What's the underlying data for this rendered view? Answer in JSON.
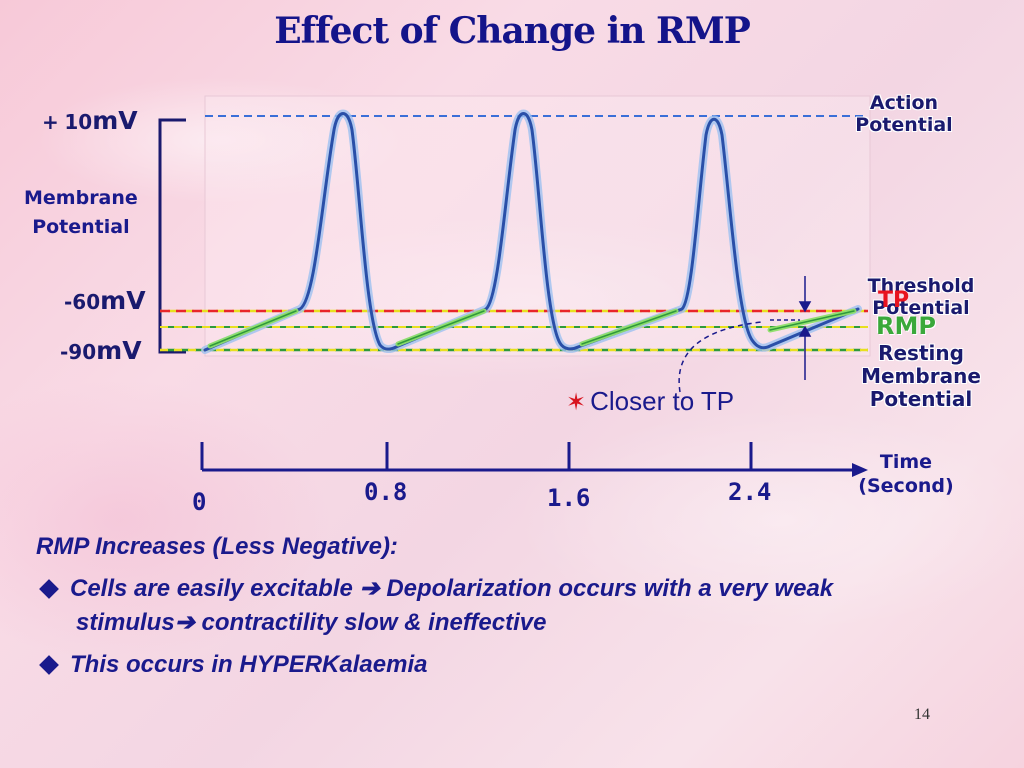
{
  "title": "Effect of Change in RMP",
  "y_labels": {
    "plus10_sign": "+",
    "plus10_num": "10",
    "plus10_unit": "mV",
    "minus60_num": "-60",
    "minus60_unit": "mV",
    "minus90_num": "-90",
    "minus90_unit": "mV"
  },
  "membrane_potential_label": [
    "Membrane",
    "Potential"
  ],
  "right_labels": {
    "action_potential": [
      "Action",
      "Potential"
    ],
    "threshold_potential": [
      "Threshold",
      "Potential"
    ],
    "tp": "TP",
    "rmp": "RMP",
    "resting_membrane_potential": [
      "Resting",
      "Membrane",
      "Potential"
    ]
  },
  "annotation": {
    "star": "✶",
    "text": "Closer to TP"
  },
  "time_axis": {
    "label": [
      "Time",
      "(Second)"
    ],
    "ticks": [
      "0",
      "0.8",
      "1.6",
      "2.4"
    ]
  },
  "bullets": {
    "heading": "RMP Increases (Less Negative):",
    "item1_part1": "Cells are easily excitable",
    "item1_arrow": "➔",
    "item1_part2": "Depolarization occurs with a very weak",
    "item1_line2_a": "stimulus",
    "item1_line2_arrow": "➔",
    "item1_line2_b": "contractility slow & ineffective",
    "item2": "This occurs in HYPERKalaemia"
  },
  "page_number": "14",
  "colors": {
    "title": "#14148a",
    "curve": "#2a4fa8",
    "curve_glow": "#9ec0f0",
    "prepotential": "#8fe06a",
    "action_line": "#3a6fd8",
    "threshold_line": "#e8262a",
    "threshold_line_alt": "#e8e020",
    "rmp_line": "#e8e020",
    "rmp_line_alt": "#2f9a3a",
    "tp_text": "#e8141f",
    "rmp_text": "#3aa83a"
  }
}
